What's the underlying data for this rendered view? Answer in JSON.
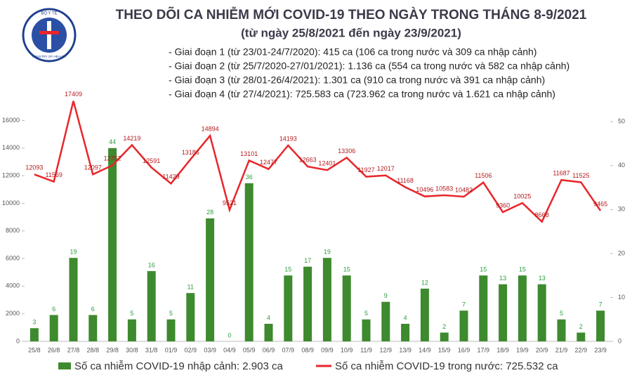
{
  "logo": {
    "top": "BỘ Y TẾ",
    "bottom": "MINISTRY OF HEALTH"
  },
  "chart_data": {
    "type": "bar-line",
    "title": "THEO DÕI CA NHIỄM MỚI COVID-19 THEO NGÀY TRONG THÁNG 8-9/2021",
    "subtitle": "(từ ngày 25/8/2021 đến ngày 23/9/2021)",
    "notes": [
      "- Giai đoạn 1 (từ 23/01-24/7/2020): 415 ca (106 ca trong nước và 309 ca nhập cảnh)",
      "- Giai đoạn 2 (từ 25/7/2020-27/01/2021): 1.136 ca (554 ca trong nước và 582 ca nhập cảnh)",
      "- Giai đoạn 3 (từ 28/01-26/4/2021): 1.301 ca (910 ca trong nước và 391 ca nhập cảnh)",
      "- Giai đoạn 4 (từ 27/4/2021): 725.583 ca (723.962 ca trong nước và 1.621 ca nhập cảnh)"
    ],
    "categories": [
      "25/8",
      "26/8",
      "27/8",
      "28/8",
      "29/8",
      "30/8",
      "31/8",
      "01/9",
      "02/9",
      "03/9",
      "04/9",
      "05/9",
      "06/9",
      "07/9",
      "08/9",
      "09/9",
      "10/9",
      "11/9",
      "12/9",
      "13/9",
      "14/9",
      "15/9",
      "16/9",
      "17/9",
      "18/9",
      "19/9",
      "20/9",
      "21/9",
      "22/9",
      "23/9"
    ],
    "series": [
      {
        "name": "Số ca nhiễm COVID-19 nhập cảnh: 2.903 ca",
        "type": "bar",
        "axis": "y2",
        "color": "#3e8a2e",
        "label_color": "#2e9e3e",
        "values": [
          3,
          6,
          19,
          6,
          44,
          5,
          16,
          5,
          11,
          28,
          0,
          36,
          4,
          15,
          17,
          19,
          15,
          5,
          9,
          4,
          12,
          2,
          7,
          15,
          13,
          15,
          13,
          5,
          2,
          7
        ]
      },
      {
        "name": "Số ca nhiễm COVID-19 trong nước: 725.532 ca",
        "type": "line",
        "axis": "y",
        "color": "#e8262a",
        "label_color": "#b5191c",
        "values": [
          12093,
          11569,
          17409,
          12097,
          12752,
          14219,
          12591,
          11429,
          13186,
          14894,
          9521,
          13101,
          12477,
          14193,
          12663,
          12401,
          13306,
          11927,
          12017,
          11168,
          10496,
          10583,
          10482,
          11506,
          9360,
          10025,
          8668,
          11687,
          11525,
          9465
        ]
      }
    ],
    "ylim": [
      0,
      17500
    ],
    "yticks": [
      0,
      2000,
      4000,
      6000,
      8000,
      10000,
      12000,
      14000,
      16000
    ],
    "y2lim": [
      0,
      55
    ],
    "y2ticks": [
      0,
      10,
      20,
      30,
      40,
      50
    ]
  }
}
